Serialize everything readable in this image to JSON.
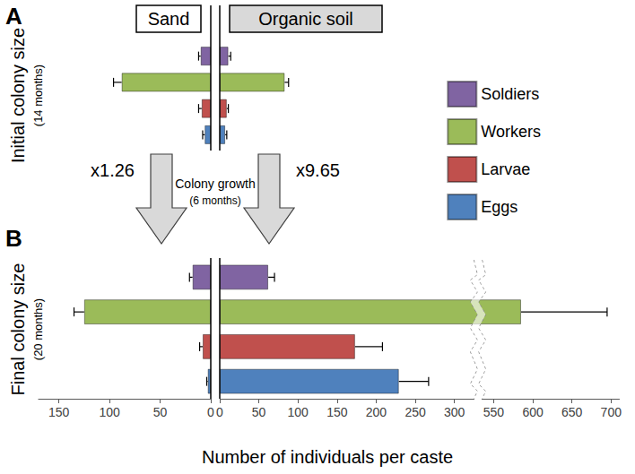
{
  "chart_data": {
    "type": "bar",
    "orientation": "horizontal",
    "xlabel": "Number of individuals per caste",
    "legend": "right",
    "series": [
      {
        "name": "Soldiers",
        "color": "#8064a2"
      },
      {
        "name": "Workers",
        "color": "#9bbb59"
      },
      {
        "name": "Larvae",
        "color": "#c0504d"
      },
      {
        "name": "Eggs",
        "color": "#4f81bd"
      }
    ],
    "sides": [
      {
        "name": "Sand",
        "xlim": [
          0,
          170
        ],
        "xticks": [
          0,
          50,
          100,
          150
        ]
      },
      {
        "name": "Organic soil",
        "xlim": [
          0,
          710
        ],
        "xticks": [
          0,
          50,
          100,
          150,
          200,
          250,
          300,
          550,
          600,
          650,
          700
        ],
        "xbreak": [
          325,
          535
        ]
      }
    ],
    "panels": [
      {
        "label": "A",
        "title": "Initial colony size",
        "subtitle": "(14 months)",
        "values": [
          [
            10,
            88,
            9,
            6
          ],
          [
            11,
            83,
            9,
            7
          ]
        ],
        "errors": [
          [
            2,
            8,
            3,
            2
          ],
          [
            3,
            5,
            2,
            2
          ]
        ]
      },
      {
        "label": "B",
        "title": "Final colony size",
        "subtitle": "(20 months)",
        "values": [
          [
            18,
            125,
            8,
            3
          ],
          [
            62,
            585,
            173,
            229
          ]
        ],
        "errors": [
          [
            3,
            10,
            3,
            1
          ],
          [
            8,
            110,
            35,
            38
          ]
        ]
      }
    ],
    "annotations": {
      "growth": "Colony growth",
      "period": "(6 months)",
      "factors": [
        "x1.26",
        "x9.65"
      ]
    }
  }
}
